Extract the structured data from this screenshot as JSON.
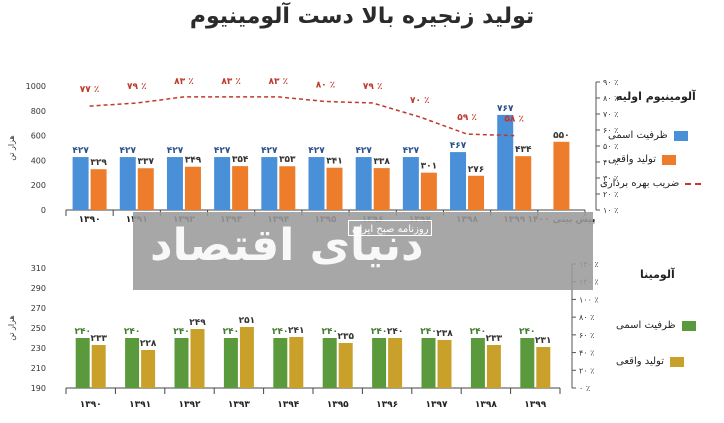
{
  "title": "تولید زنجیره بالا دست آلومینیوم",
  "watermark": {
    "logo": "دنیای اقتصاد",
    "tagline": "روزنامه صبح ایران"
  },
  "chart_data": [
    {
      "id": "top",
      "type": "bar",
      "title": "آلومینیوم اولیه",
      "ylabel": "هزار تن",
      "ylim": [
        0,
        1000
      ],
      "yticks": [
        0,
        200,
        400,
        600,
        800,
        1000
      ],
      "y2lim": [
        10,
        90
      ],
      "y2ticks": [
        "۱۰ ٪",
        "۲۰ ٪",
        "۳۰ ٪",
        "۴۰ ٪",
        "۵۰ ٪",
        "۶۰ ٪",
        "۷۰ ٪",
        "۸۰ ٪",
        "۹۰ ٪"
      ],
      "categories": [
        "۱۳۹۰",
        "۱۳۹۱",
        "۱۳۹۲",
        "۱۳۹۳",
        "۱۳۹۴",
        "۱۳۹۵",
        "۱۳۹۶",
        "۱۳۹۷",
        "۱۳۹۸",
        "۱۳۹۹",
        "پیش بینی ۱۴۰۰"
      ],
      "series": [
        {
          "name": "ظرفیت اسمی",
          "color": "#4a90d9",
          "values": [
            427,
            427,
            427,
            427,
            427,
            427,
            427,
            427,
            467,
            767,
            null
          ],
          "labels": [
            "۴۲۷",
            "۴۲۷",
            "۴۲۷",
            "۴۲۷",
            "۴۲۷",
            "۴۲۷",
            "۴۲۷",
            "۴۲۷",
            "۴۶۷",
            "۷۶۷",
            ""
          ]
        },
        {
          "name": "تولید واقعی",
          "color": "#ee7d2b",
          "values": [
            329,
            337,
            349,
            354,
            353,
            341,
            338,
            301,
            276,
            434,
            550
          ],
          "labels": [
            "۳۲۹",
            "۳۳۷",
            "۳۴۹",
            "۳۵۴",
            "۳۵۳",
            "۳۴۱",
            "۳۳۸",
            "۳۰۱",
            "۲۷۶",
            "۴۳۴",
            "۵۵۰"
          ]
        },
        {
          "name": "ضریب بهره برداری",
          "color": "#c0392b",
          "values": [
            77,
            79,
            83,
            83,
            83,
            80,
            79,
            70,
            59,
            58,
            null
          ],
          "labels": [
            "۷۷ ٪",
            "۷۹ ٪",
            "۸۳ ٪",
            "۸۳ ٪",
            "۸۳ ٪",
            "۸۰ ٪",
            "۷۹ ٪",
            "۷۰ ٪",
            "۵۹ ٪",
            "۵۸ ٪",
            ""
          ]
        }
      ],
      "legend": "right"
    },
    {
      "id": "bottom",
      "type": "bar",
      "title": "آلومینا",
      "ylabel": "هزار تن",
      "ylim": [
        190,
        310
      ],
      "yticks": [
        190,
        210,
        230,
        250,
        270,
        290,
        310
      ],
      "y2lim": [
        0,
        130
      ],
      "y2ticks": [
        "۰ ٪",
        "۲۰ ٪",
        "۴۰ ٪",
        "۶۰ ٪",
        "۸۰ ٪",
        "۱۰۰ ٪",
        "۱۲۰ ٪",
        "۱۳۰ ٪"
      ],
      "categories": [
        "۱۳۹۰",
        "۱۳۹۱",
        "۱۳۹۲",
        "۱۳۹۳",
        "۱۳۹۴",
        "۱۳۹۵",
        "۱۳۹۶",
        "۱۳۹۷",
        "۱۳۹۸",
        "۱۳۹۹"
      ],
      "series": [
        {
          "name": "ظرفیت اسمی",
          "color": "#5a9a3c",
          "values": [
            240,
            240,
            240,
            240,
            240,
            240,
            240,
            240,
            240,
            240
          ],
          "labels": [
            "۲۴۰",
            "۲۴۰",
            "۲۴۰",
            "۲۴۰",
            "۲۴۰",
            "۲۴۰",
            "۲۴۰",
            "۲۴۰",
            "۲۴۰",
            "۲۴۰"
          ]
        },
        {
          "name": "تولید واقعی",
          "color": "#c9a12a",
          "values": [
            233,
            228,
            249,
            251,
            241,
            235,
            240,
            238,
            233,
            231
          ],
          "labels": [
            "۲۳۳",
            "۲۲۸",
            "۲۴۹",
            "۲۵۱",
            "۲۴۱",
            "۲۳۵",
            "۲۴۰",
            "۲۳۸",
            "۲۳۳",
            "۲۳۱"
          ]
        }
      ],
      "legend": "right"
    }
  ]
}
